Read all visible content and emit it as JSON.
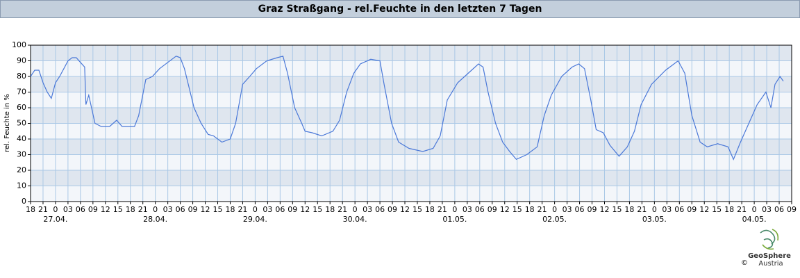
{
  "chart_data": {
    "type": "line",
    "title": "Graz Straßgang - rel.Feuchte in den letzten 7 Tagen",
    "ylabel": "rel. Feuchte in %",
    "logo": {
      "name": "GeoSphere",
      "sub": "Austria",
      "copyright": "©"
    },
    "series": [
      {
        "color": "#4a78d8",
        "x": [
          0,
          1,
          2,
          3,
          4,
          5,
          6,
          7,
          8,
          9,
          10,
          11,
          12,
          13,
          13.3,
          14,
          15.5,
          17,
          19,
          20.7,
          22,
          25,
          26,
          27.7,
          29.3,
          31,
          33,
          35,
          36,
          37,
          39.3,
          41,
          42.7,
          44,
          46,
          48,
          49.3,
          51,
          52.7,
          54.3,
          56.8,
          59.3,
          60.7,
          61.8,
          63.5,
          65.2,
          66,
          67.7,
          70,
          72.7,
          74.3,
          76,
          77.7,
          79.3,
          81.8,
          84,
          85,
          86.8,
          88.5,
          91,
          94.3,
          96.8,
          98.5,
          100.2,
          102.7,
          105.2,
          107.7,
          108.8,
          110,
          111.8,
          113.5,
          115.2,
          116.8,
          119.3,
          121.8,
          123.5,
          125.2,
          127.7,
          130.2,
          131.8,
          133.2,
          134.7,
          136,
          137.7,
          139.3,
          141.5,
          143.5,
          145.2,
          146.8,
          149.3,
          152.7,
          155.7,
          157.3,
          159,
          161,
          162.7,
          165.2,
          167.7,
          169,
          170.7,
          172.7,
          174.7,
          176.8,
          178,
          179,
          180.2,
          181
        ],
        "values": [
          80,
          84,
          84,
          76,
          70,
          66,
          76,
          80,
          85,
          90,
          92,
          92,
          89,
          86,
          62,
          68,
          50,
          48,
          48,
          52,
          48,
          48,
          55,
          78,
          80,
          85,
          89,
          93,
          92,
          85,
          60,
          50,
          43,
          42,
          38,
          40,
          50,
          75,
          80,
          85,
          90,
          92,
          93,
          82,
          60,
          50,
          45,
          44,
          42,
          45,
          52,
          70,
          82,
          88,
          91,
          90,
          75,
          50,
          38,
          34,
          32,
          34,
          42,
          65,
          76,
          82,
          88,
          86,
          70,
          50,
          38,
          32,
          27,
          30,
          35,
          55,
          68,
          80,
          86,
          88,
          85,
          65,
          46,
          44,
          36,
          29,
          35,
          45,
          62,
          75,
          84,
          90,
          82,
          55,
          38,
          35,
          37,
          35,
          27,
          38,
          50,
          62,
          70,
          60,
          75,
          80,
          77
        ]
      }
    ],
    "xlim": [
      0,
      183
    ],
    "xticks": [
      {
        "value": 0,
        "label": "18"
      },
      {
        "value": 3,
        "label": "21"
      },
      {
        "value": 6,
        "label": "0"
      },
      {
        "value": 9,
        "label": "03"
      },
      {
        "value": 12,
        "label": "06"
      },
      {
        "value": 15,
        "label": "09"
      },
      {
        "value": 18,
        "label": "12"
      },
      {
        "value": 21,
        "label": "15"
      },
      {
        "value": 24,
        "label": "18"
      },
      {
        "value": 27,
        "label": "21"
      },
      {
        "value": 30,
        "label": "0"
      },
      {
        "value": 33,
        "label": "03"
      },
      {
        "value": 36,
        "label": "06"
      },
      {
        "value": 39,
        "label": "09"
      },
      {
        "value": 42,
        "label": "12"
      },
      {
        "value": 45,
        "label": "15"
      },
      {
        "value": 48,
        "label": "18"
      },
      {
        "value": 51,
        "label": "21"
      },
      {
        "value": 54,
        "label": "0"
      },
      {
        "value": 57,
        "label": "03"
      },
      {
        "value": 60,
        "label": "06"
      },
      {
        "value": 63,
        "label": "09"
      },
      {
        "value": 66,
        "label": "12"
      },
      {
        "value": 69,
        "label": "15"
      },
      {
        "value": 72,
        "label": "18"
      },
      {
        "value": 75,
        "label": "21"
      },
      {
        "value": 78,
        "label": "0"
      },
      {
        "value": 81,
        "label": "03"
      },
      {
        "value": 84,
        "label": "06"
      },
      {
        "value": 87,
        "label": "09"
      },
      {
        "value": 90,
        "label": "12"
      },
      {
        "value": 93,
        "label": "15"
      },
      {
        "value": 96,
        "label": "18"
      },
      {
        "value": 99,
        "label": "21"
      },
      {
        "value": 102,
        "label": "0"
      },
      {
        "value": 105,
        "label": "03"
      },
      {
        "value": 108,
        "label": "06"
      },
      {
        "value": 111,
        "label": "09"
      },
      {
        "value": 114,
        "label": "12"
      },
      {
        "value": 117,
        "label": "15"
      },
      {
        "value": 120,
        "label": "18"
      },
      {
        "value": 123,
        "label": "21"
      },
      {
        "value": 126,
        "label": "0"
      },
      {
        "value": 129,
        "label": "03"
      },
      {
        "value": 132,
        "label": "06"
      },
      {
        "value": 135,
        "label": "09"
      },
      {
        "value": 138,
        "label": "12"
      },
      {
        "value": 141,
        "label": "15"
      },
      {
        "value": 144,
        "label": "18"
      },
      {
        "value": 147,
        "label": "21"
      },
      {
        "value": 150,
        "label": "0"
      },
      {
        "value": 153,
        "label": "03"
      },
      {
        "value": 156,
        "label": "06"
      },
      {
        "value": 159,
        "label": "09"
      },
      {
        "value": 162,
        "label": "12"
      },
      {
        "value": 165,
        "label": "15"
      },
      {
        "value": 168,
        "label": "18"
      },
      {
        "value": 171,
        "label": "21"
      },
      {
        "value": 174,
        "label": "0"
      },
      {
        "value": 177,
        "label": "03"
      },
      {
        "value": 180,
        "label": "06"
      },
      {
        "value": 183,
        "label": "09"
      }
    ],
    "xday_labels": [
      {
        "value": 6,
        "label": "27.04."
      },
      {
        "value": 30,
        "label": "28.04."
      },
      {
        "value": 54,
        "label": "29.04."
      },
      {
        "value": 78,
        "label": "30.04."
      },
      {
        "value": 102,
        "label": "01.05."
      },
      {
        "value": 126,
        "label": "02.05."
      },
      {
        "value": 150,
        "label": "03.05."
      },
      {
        "value": 174,
        "label": "04.05."
      }
    ],
    "ylim": [
      0,
      100
    ],
    "yticks": [
      0,
      10,
      20,
      30,
      40,
      50,
      60,
      70,
      80,
      90,
      100
    ],
    "grid": true
  }
}
